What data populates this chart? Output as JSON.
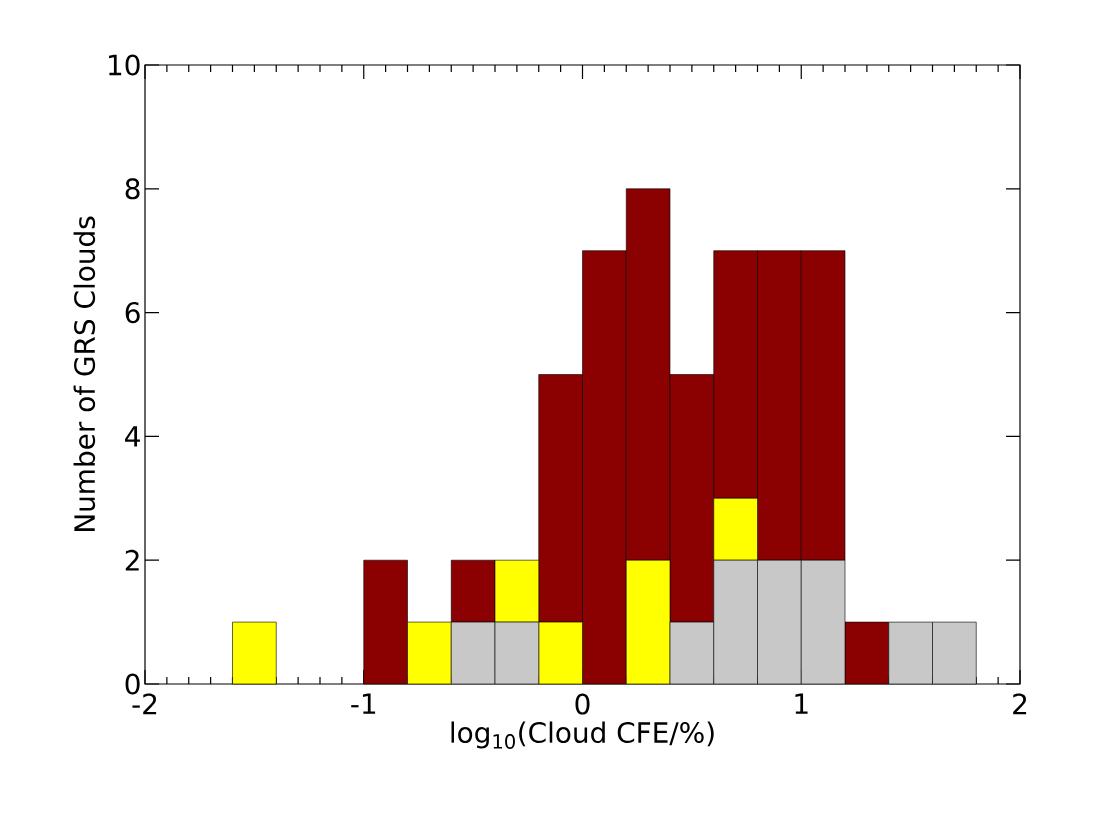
{
  "chart_data": {
    "type": "bar",
    "xlabel": "log$_{10}$(Cloud CFE/%)",
    "ylabel": "Number of GRS Clouds",
    "x": [
      -1.5,
      -1.3,
      -1.1,
      -0.9,
      -0.7,
      -0.5,
      -0.3,
      -0.1,
      0.1,
      0.3,
      0.5,
      0.7,
      0.9,
      1.1,
      1.3,
      1.5,
      1.7
    ],
    "stacked": true,
    "series": [
      {
        "color": "#c8c8c8",
        "values": [
          0,
          0,
          0,
          0,
          0,
          1,
          1,
          0,
          0,
          0,
          1,
          2,
          2,
          2,
          0,
          1,
          1
        ]
      },
      {
        "color": "#ffff00",
        "values": [
          1,
          0,
          0,
          0,
          1,
          0,
          1,
          1,
          0,
          2,
          0,
          1,
          0,
          0,
          0,
          0,
          0
        ]
      },
      {
        "color": "#8b0000",
        "values": [
          0,
          0,
          0,
          2,
          0,
          1,
          0,
          4,
          7,
          6,
          4,
          4,
          5,
          5,
          1,
          0,
          0
        ]
      }
    ],
    "xlim": [
      -2,
      2
    ],
    "ylim": [
      0,
      10
    ],
    "xticks": [
      -2,
      -1,
      0,
      1,
      2
    ],
    "yticks": [
      0,
      2,
      4,
      6,
      8,
      10
    ]
  }
}
